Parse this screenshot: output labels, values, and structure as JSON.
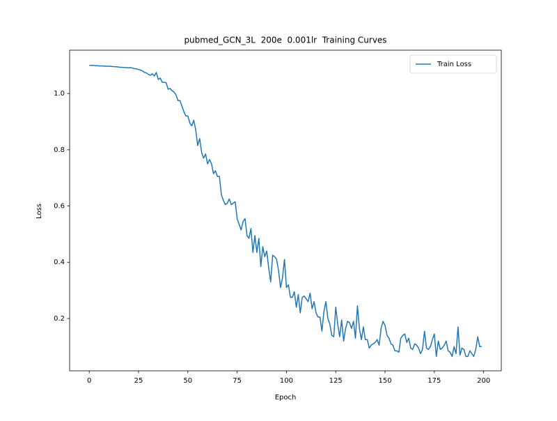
{
  "chart_data": {
    "type": "line",
    "title": "pubmed_GCN_3L  200e  0.001lr  Training Curves",
    "x_label": "Epoch",
    "y_label": "Loss",
    "x": [
      0,
      1,
      2,
      3,
      4,
      5,
      6,
      7,
      8,
      9,
      10,
      11,
      12,
      13,
      14,
      15,
      16,
      17,
      18,
      19,
      20,
      21,
      22,
      23,
      24,
      25,
      26,
      27,
      28,
      29,
      30,
      31,
      32,
      33,
      34,
      35,
      36,
      37,
      38,
      39,
      40,
      41,
      42,
      43,
      44,
      45,
      46,
      47,
      48,
      49,
      50,
      51,
      52,
      53,
      54,
      55,
      56,
      57,
      58,
      59,
      60,
      61,
      62,
      63,
      64,
      65,
      66,
      67,
      68,
      69,
      70,
      71,
      72,
      73,
      74,
      75,
      76,
      77,
      78,
      79,
      80,
      81,
      82,
      83,
      84,
      85,
      86,
      87,
      88,
      89,
      90,
      91,
      92,
      93,
      94,
      95,
      96,
      97,
      98,
      99,
      100,
      101,
      102,
      103,
      104,
      105,
      106,
      107,
      108,
      109,
      110,
      111,
      112,
      113,
      114,
      115,
      116,
      117,
      118,
      119,
      120,
      121,
      122,
      123,
      124,
      125,
      126,
      127,
      128,
      129,
      130,
      131,
      132,
      133,
      134,
      135,
      136,
      137,
      138,
      139,
      140,
      141,
      142,
      143,
      144,
      145,
      146,
      147,
      148,
      149,
      150,
      151,
      152,
      153,
      154,
      155,
      156,
      157,
      158,
      159,
      160,
      161,
      162,
      163,
      164,
      165,
      166,
      167,
      168,
      169,
      170,
      171,
      172,
      173,
      174,
      175,
      176,
      177,
      178,
      179,
      180,
      181,
      182,
      183,
      184,
      185,
      186,
      187,
      188,
      189,
      190,
      191,
      192,
      193,
      194,
      195,
      196,
      197,
      198,
      199
    ],
    "series": [
      {
        "name": "Train Loss",
        "color": "#1f77b4",
        "values": [
          1.1,
          1.1,
          1.1,
          1.099,
          1.099,
          1.098,
          1.098,
          1.098,
          1.097,
          1.097,
          1.097,
          1.096,
          1.096,
          1.095,
          1.095,
          1.094,
          1.093,
          1.093,
          1.092,
          1.092,
          1.091,
          1.092,
          1.09,
          1.088,
          1.088,
          1.085,
          1.083,
          1.08,
          1.075,
          1.073,
          1.068,
          1.065,
          1.07,
          1.062,
          1.075,
          1.05,
          1.055,
          1.04,
          1.04,
          1.038,
          1.015,
          1.018,
          1.01,
          1.005,
          0.995,
          0.975,
          0.975,
          0.955,
          0.935,
          0.92,
          0.92,
          0.895,
          0.885,
          0.905,
          0.87,
          0.815,
          0.84,
          0.79,
          0.77,
          0.785,
          0.75,
          0.765,
          0.75,
          0.715,
          0.725,
          0.705,
          0.705,
          0.64,
          0.62,
          0.605,
          0.61,
          0.625,
          0.605,
          0.61,
          0.615,
          0.555,
          0.535,
          0.515,
          0.545,
          0.555,
          0.495,
          0.485,
          0.52,
          0.435,
          0.495,
          0.435,
          0.485,
          0.385,
          0.455,
          0.42,
          0.44,
          0.38,
          0.33,
          0.425,
          0.42,
          0.41,
          0.37,
          0.31,
          0.345,
          0.41,
          0.31,
          0.32,
          0.275,
          0.275,
          0.295,
          0.24,
          0.285,
          0.22,
          0.275,
          0.28,
          0.27,
          0.26,
          0.29,
          0.235,
          0.26,
          0.22,
          0.205,
          0.205,
          0.155,
          0.225,
          0.26,
          0.2,
          0.18,
          0.14,
          0.135,
          0.24,
          0.18,
          0.135,
          0.195,
          0.12,
          0.165,
          0.19,
          0.185,
          0.165,
          0.19,
          0.13,
          0.245,
          0.165,
          0.125,
          0.17,
          0.125,
          0.125,
          0.095,
          0.105,
          0.11,
          0.115,
          0.125,
          0.105,
          0.165,
          0.19,
          0.175,
          0.14,
          0.13,
          0.11,
          0.105,
          0.085,
          0.085,
          0.08,
          0.13,
          0.14,
          0.145,
          0.115,
          0.13,
          0.095,
          0.09,
          0.11,
          0.105,
          0.095,
          0.075,
          0.09,
          0.155,
          0.095,
          0.09,
          0.1,
          0.125,
          0.145,
          0.065,
          0.12,
          0.09,
          0.095,
          0.105,
          0.12,
          0.085,
          0.08,
          0.065,
          0.1,
          0.075,
          0.17,
          0.07,
          0.095,
          0.09,
          0.065,
          0.065,
          0.085,
          0.075,
          0.065,
          0.09,
          0.135,
          0.1,
          0.1
        ]
      }
    ],
    "xlim": [
      -9.95,
      208.95
    ],
    "xticks": [
      0,
      25,
      50,
      75,
      100,
      125,
      150,
      175,
      200
    ],
    "ylim": [
      0.014,
      1.154
    ],
    "yticks": [
      0.2,
      0.4,
      0.6,
      0.8,
      {
        "value": 1,
        "label": "1.0"
      }
    ],
    "grid": false,
    "legend": "upper right"
  }
}
